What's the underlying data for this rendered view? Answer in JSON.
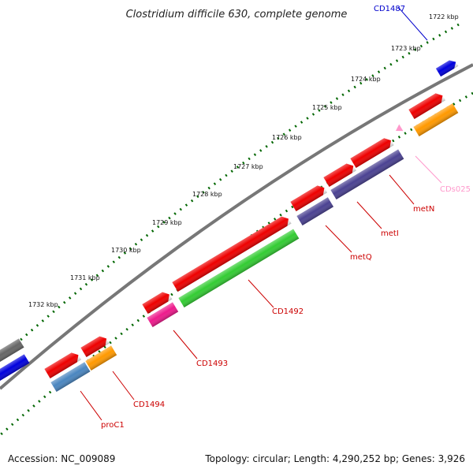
{
  "title": "Clostridium difficile 630, complete genome",
  "ticks": [
    "1722 kbp",
    "1723 kbp",
    "1724 kbp",
    "1725 kbp",
    "1726 kbp",
    "1727 kbp",
    "1728 kbp",
    "1729 kbp",
    "1730 kbp",
    "1731 kbp",
    "1732 kbp"
  ],
  "gene_labels": {
    "cd1487": "CD1487",
    "cds025": "CDs025",
    "metn": "metN",
    "meti": "metI",
    "metq": "metQ",
    "cd1492": "CD1492",
    "cd1493": "CD1493",
    "cd1494": "CD1494",
    "proc1": "proC1"
  },
  "footer": {
    "accession": "Accession: NC_009089",
    "summary": "Topology: circular; Length: 4,290,252 bp; Genes: 3,926"
  },
  "colors": {
    "red": "#ee0000",
    "blue": "#0000dd",
    "purple": "#4b4292",
    "green": "#33cc33",
    "magenta": "#ee1a8c",
    "orange": "#ff9900",
    "steel": "#4a86c0",
    "pink": "#ff99cc",
    "gray": "#666666",
    "tick_green": "#006600"
  }
}
